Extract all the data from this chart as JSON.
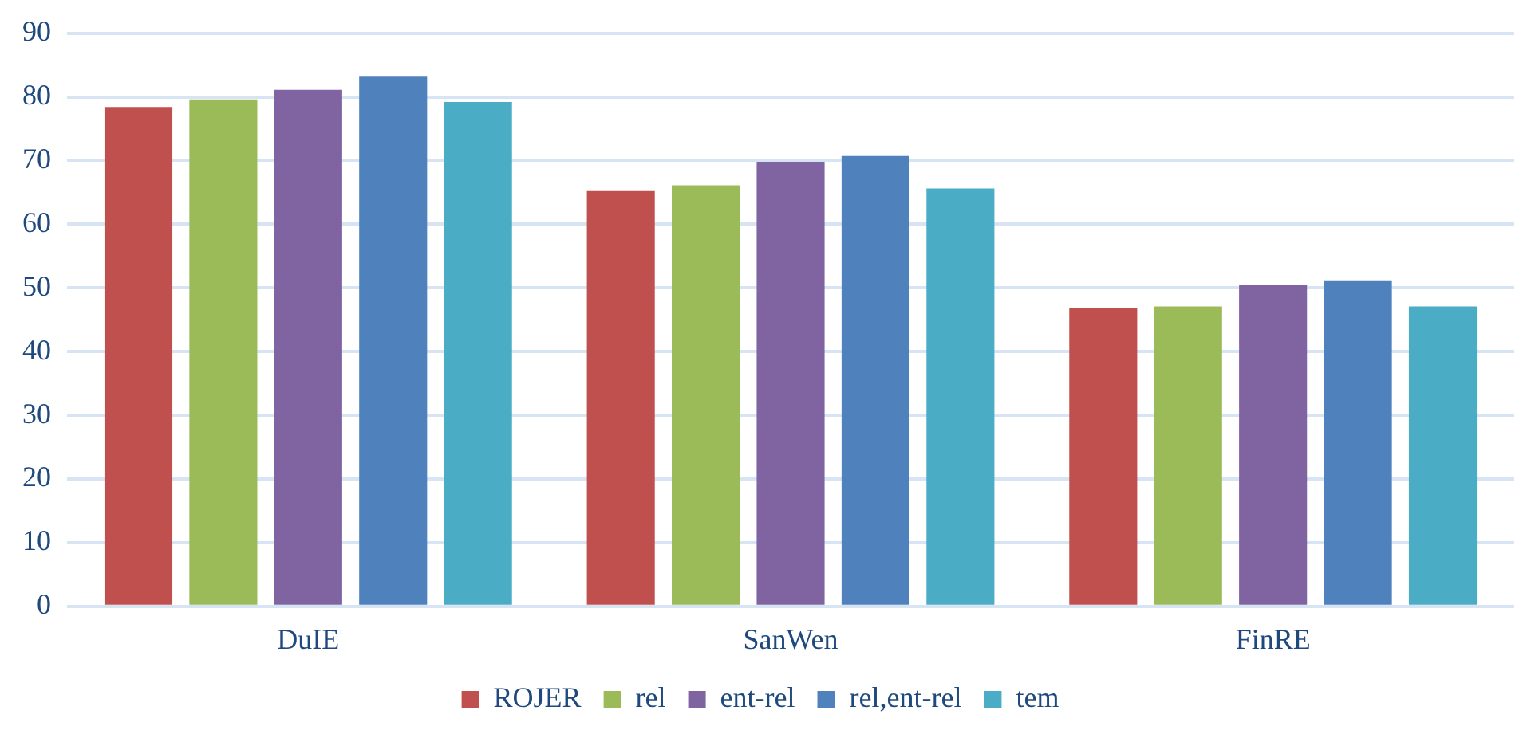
{
  "chart_data": {
    "type": "bar",
    "categories": [
      "DuIE",
      "SanWen",
      "FinRE"
    ],
    "series": [
      {
        "name": "ROJER",
        "color": "#c0504d",
        "values": [
          78.4,
          65.2,
          46.9
        ]
      },
      {
        "name": "rel",
        "color": "#9bbb59",
        "values": [
          79.6,
          66.1,
          47.1
        ]
      },
      {
        "name": "ent-rel",
        "color": "#8064a2",
        "values": [
          81.1,
          69.8,
          50.5
        ]
      },
      {
        "name": "rel,ent-rel",
        "color": "#4f81bd",
        "values": [
          83.3,
          70.7,
          51.2
        ]
      },
      {
        "name": "tem",
        "color": "#4bacc6",
        "values": [
          79.2,
          65.6,
          47.1
        ]
      }
    ],
    "ylim": [
      0,
      90
    ],
    "yticks": [
      0,
      10,
      20,
      30,
      40,
      50,
      60,
      70,
      80,
      90
    ],
    "grid": "y",
    "legend": "bottom"
  }
}
